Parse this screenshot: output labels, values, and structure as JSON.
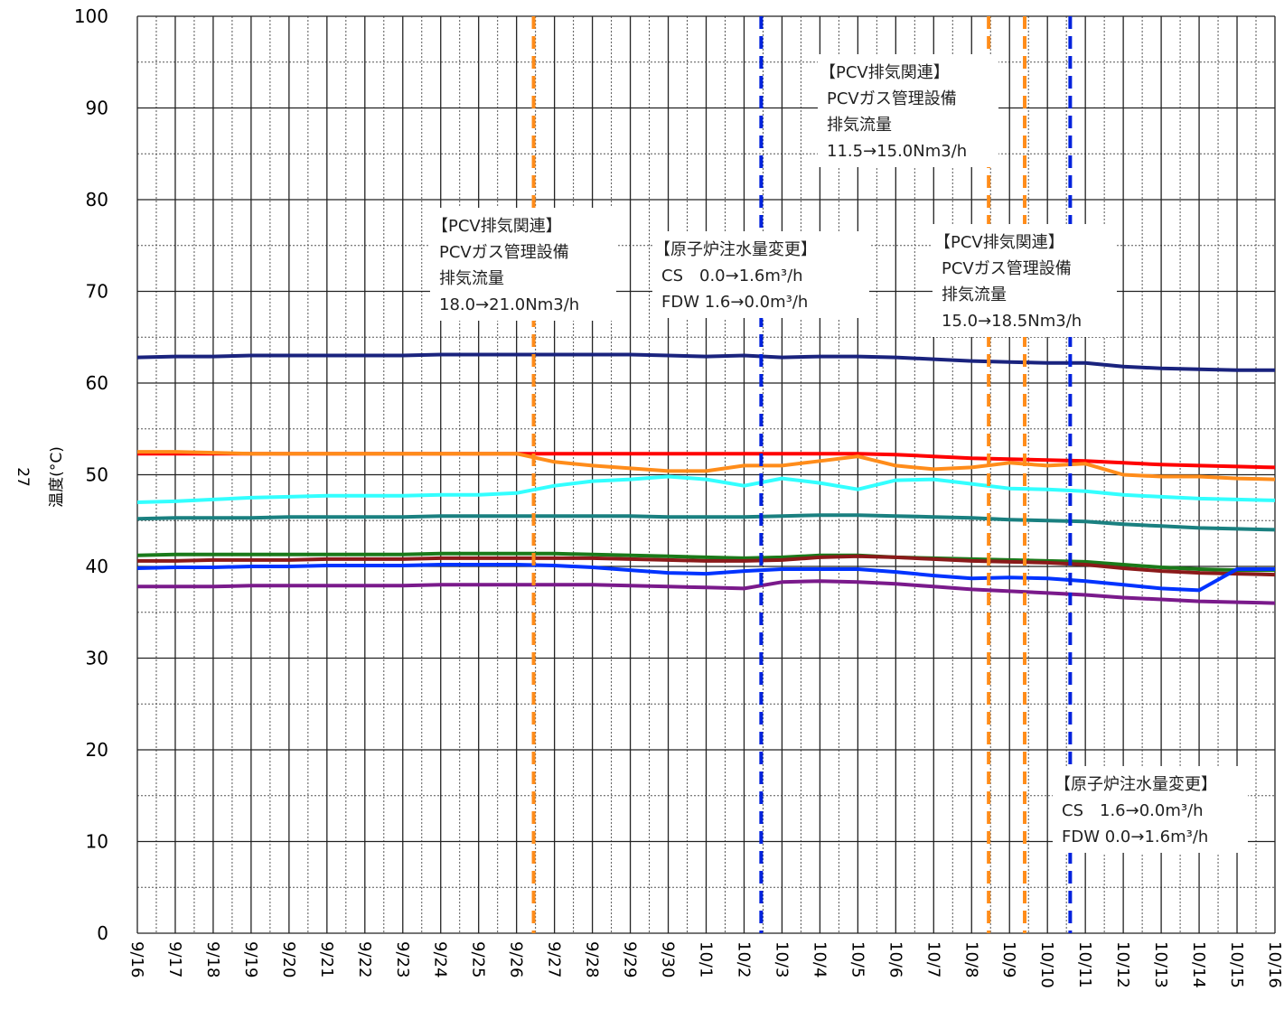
{
  "chart_data": {
    "type": "line",
    "page_number": "27",
    "xlabel": "",
    "ylabel": "温度(°C)",
    "ylim": [
      0,
      100
    ],
    "yticks": [
      0,
      10,
      20,
      30,
      40,
      50,
      60,
      70,
      80,
      90,
      100
    ],
    "x": [
      "9/16",
      "9/17",
      "9/18",
      "9/19",
      "9/20",
      "9/21",
      "9/22",
      "9/23",
      "9/24",
      "9/25",
      "9/26",
      "9/27",
      "9/28",
      "9/29",
      "9/30",
      "10/1",
      "10/2",
      "10/3",
      "10/4",
      "10/5",
      "10/6",
      "10/7",
      "10/8",
      "10/9",
      "10/10",
      "10/11",
      "10/12",
      "10/13",
      "10/14",
      "10/15",
      "10/16"
    ],
    "grid": true,
    "series": [
      {
        "color": "#1a237e",
        "values": [
          62.8,
          62.9,
          62.9,
          63.0,
          63.0,
          63.0,
          63.0,
          63.0,
          63.1,
          63.1,
          63.1,
          63.1,
          63.1,
          63.1,
          63.0,
          62.9,
          63.0,
          62.8,
          62.9,
          62.9,
          62.8,
          62.6,
          62.4,
          62.3,
          62.2,
          62.2,
          61.8,
          61.6,
          61.5,
          61.4,
          61.4
        ]
      },
      {
        "color": "#ff0000",
        "values": [
          52.3,
          52.3,
          52.3,
          52.3,
          52.3,
          52.3,
          52.3,
          52.3,
          52.3,
          52.3,
          52.3,
          52.3,
          52.3,
          52.3,
          52.3,
          52.3,
          52.3,
          52.3,
          52.3,
          52.3,
          52.2,
          52.0,
          51.8,
          51.7,
          51.6,
          51.5,
          51.3,
          51.1,
          51.0,
          50.9,
          50.8
        ]
      },
      {
        "color": "#ff8c1a",
        "values": [
          52.5,
          52.5,
          52.4,
          52.3,
          52.3,
          52.3,
          52.3,
          52.3,
          52.3,
          52.3,
          52.3,
          51.4,
          51.0,
          50.7,
          50.4,
          50.4,
          51.0,
          51.0,
          51.5,
          52.0,
          51.0,
          50.6,
          50.8,
          51.3,
          51.0,
          51.2,
          50.0,
          49.8,
          49.8,
          49.6,
          49.5
        ]
      },
      {
        "color": "#33ffff",
        "values": [
          47.0,
          47.1,
          47.3,
          47.5,
          47.6,
          47.7,
          47.7,
          47.7,
          47.8,
          47.8,
          48.0,
          48.8,
          49.3,
          49.5,
          49.8,
          49.5,
          48.8,
          49.6,
          49.1,
          48.4,
          49.4,
          49.5,
          49.0,
          48.5,
          48.4,
          48.2,
          47.8,
          47.6,
          47.4,
          47.3,
          47.2
        ]
      },
      {
        "color": "#1a8080",
        "values": [
          45.2,
          45.3,
          45.3,
          45.3,
          45.4,
          45.4,
          45.4,
          45.4,
          45.5,
          45.5,
          45.5,
          45.5,
          45.5,
          45.5,
          45.4,
          45.4,
          45.4,
          45.5,
          45.6,
          45.6,
          45.5,
          45.4,
          45.3,
          45.1,
          45.0,
          44.9,
          44.6,
          44.4,
          44.2,
          44.1,
          44.0
        ]
      },
      {
        "color": "#1a7a1a",
        "values": [
          41.2,
          41.3,
          41.3,
          41.3,
          41.3,
          41.3,
          41.3,
          41.3,
          41.4,
          41.4,
          41.4,
          41.4,
          41.3,
          41.2,
          41.1,
          41.0,
          40.9,
          41.0,
          41.2,
          41.2,
          41.0,
          40.9,
          40.8,
          40.7,
          40.6,
          40.5,
          40.2,
          39.9,
          39.7,
          39.6,
          39.6
        ]
      },
      {
        "color": "#8b1a1a",
        "values": [
          40.6,
          40.6,
          40.7,
          40.7,
          40.7,
          40.8,
          40.8,
          40.8,
          40.9,
          40.9,
          40.9,
          40.9,
          40.9,
          40.8,
          40.7,
          40.6,
          40.6,
          40.7,
          41.0,
          41.1,
          41.0,
          40.8,
          40.6,
          40.5,
          40.4,
          40.2,
          39.8,
          39.5,
          39.3,
          39.2,
          39.1
        ]
      },
      {
        "color": "#0033ff",
        "values": [
          39.8,
          39.9,
          39.9,
          40.0,
          40.0,
          40.1,
          40.1,
          40.1,
          40.2,
          40.2,
          40.2,
          40.1,
          39.9,
          39.6,
          39.3,
          39.2,
          39.5,
          39.7,
          39.7,
          39.7,
          39.4,
          39.0,
          38.7,
          38.8,
          38.7,
          38.4,
          38.0,
          37.6,
          37.4,
          39.7,
          39.7
        ]
      },
      {
        "color": "#7a1a8b",
        "values": [
          37.8,
          37.8,
          37.8,
          37.9,
          37.9,
          37.9,
          37.9,
          37.9,
          38.0,
          38.0,
          38.0,
          38.0,
          38.0,
          37.9,
          37.8,
          37.7,
          37.6,
          38.3,
          38.4,
          38.3,
          38.1,
          37.8,
          37.5,
          37.3,
          37.1,
          36.9,
          36.6,
          36.4,
          36.2,
          36.1,
          36.0
        ]
      }
    ],
    "event_lines": [
      {
        "color": "#ff8c1a",
        "x": 10.45
      },
      {
        "color": "#0022dd",
        "x": 16.45
      },
      {
        "color": "#ff8c1a",
        "x": 22.45
      },
      {
        "color": "#ff8c1a",
        "x": 23.4
      },
      {
        "color": "#0022dd",
        "x": 24.6
      }
    ],
    "annotations": [
      {
        "lines": [
          "【PCV排気関連】",
          "PCVガス管理設備",
          "排気流量",
          "11.5→15.0Nm3/h"
        ]
      },
      {
        "lines": [
          "【PCV排気関連】",
          "PCVガス管理設備",
          "排気流量",
          "18.0→21.0Nm3/h"
        ]
      },
      {
        "lines": [
          "【原子炉注水量変更】",
          "CS　0.0→1.6m³/h",
          "FDW  1.6→0.0m³/h"
        ]
      },
      {
        "lines": [
          "【PCV排気関連】",
          "PCVガス管理設備",
          "排気流量",
          "15.0→18.5Nm3/h"
        ]
      },
      {
        "lines": [
          "【原子炉注水量変更】",
          "CS　1.6→0.0m³/h",
          "FDW  0.0→1.6m³/h"
        ]
      }
    ]
  }
}
